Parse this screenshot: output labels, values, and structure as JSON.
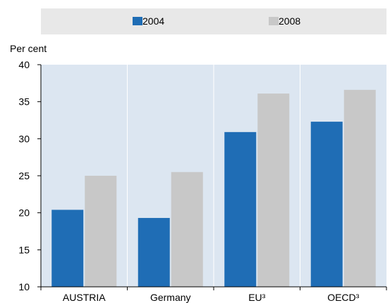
{
  "chart_data": {
    "type": "bar",
    "title": "",
    "ylabel": "Per cent",
    "xlabel": "",
    "ylim": [
      10,
      40
    ],
    "yticks": [
      10,
      15,
      20,
      25,
      30,
      35,
      40
    ],
    "categories": [
      "AUSTRIA",
      "Germany",
      "EU³",
      "OECD³"
    ],
    "series": [
      {
        "name": "2004",
        "color": "#1f6db5",
        "values": [
          20.4,
          19.3,
          30.9,
          32.3
        ]
      },
      {
        "name": "2008",
        "color": "#c8c8c8",
        "values": [
          25.0,
          25.5,
          36.1,
          36.6
        ]
      }
    ],
    "legend_position": "top",
    "grid": "vertical-separators"
  }
}
